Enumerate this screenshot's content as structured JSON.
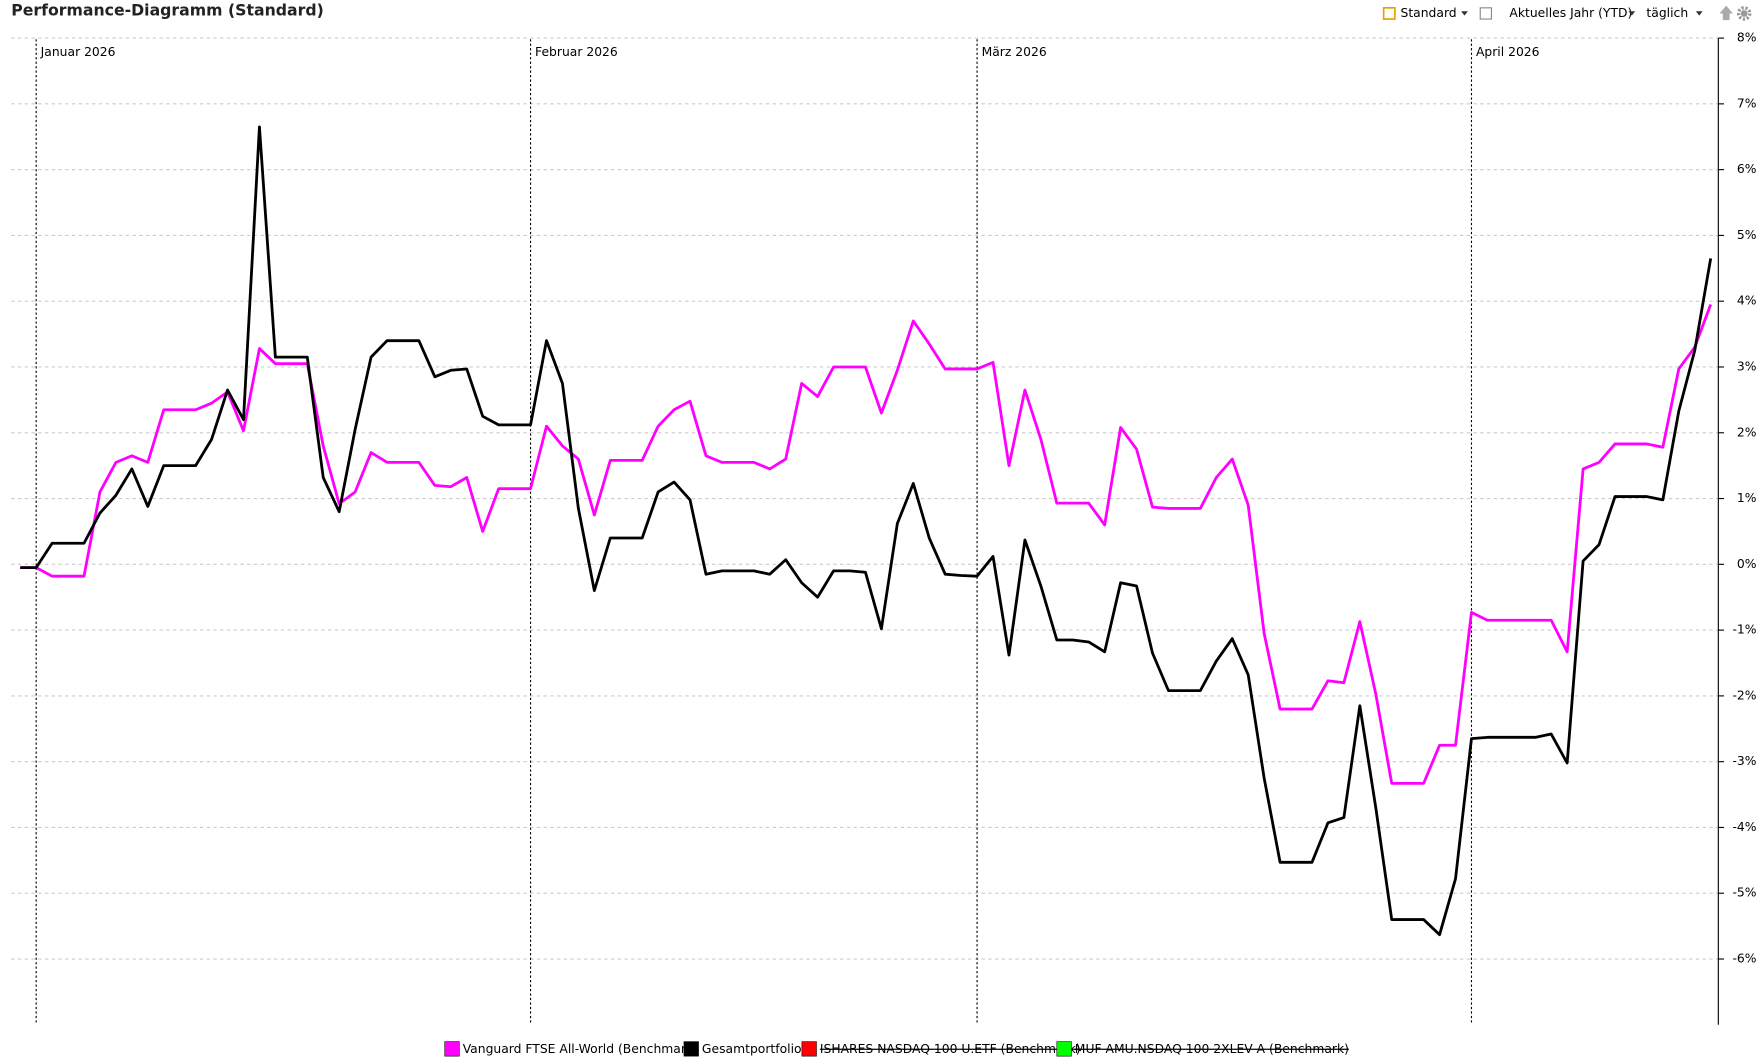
{
  "toolbar": {
    "layout": "Standard",
    "period": "Aktuelles Jahr (YTD)",
    "interval": "täglich"
  },
  "chart_data": {
    "type": "line",
    "title": "Performance-Diagramm (Standard)",
    "categories": [
      null,
      "Januar 2026",
      null,
      null,
      null,
      null,
      null,
      null,
      null,
      null,
      null,
      null,
      null,
      null,
      null,
      null,
      null,
      null,
      null,
      null,
      null,
      null,
      null,
      null,
      null,
      null,
      null,
      null,
      null,
      null,
      null,
      null,
      "Februar 2026",
      null,
      null,
      null,
      null,
      null,
      null,
      null,
      null,
      null,
      null,
      null,
      null,
      null,
      null,
      null,
      null,
      null,
      null,
      null,
      null,
      null,
      null,
      null,
      null,
      null,
      null,
      null,
      "März 2026",
      null,
      null,
      null,
      null,
      null,
      null,
      null,
      null,
      null,
      null,
      null,
      null,
      null,
      null,
      null,
      null,
      null,
      null,
      null,
      null,
      null,
      null,
      null,
      null,
      null,
      null,
      null,
      null,
      null,
      null,
      "April 2026",
      null,
      null,
      null,
      null,
      null,
      null,
      null,
      null,
      null,
      null,
      null,
      null,
      null,
      null,
      null
    ],
    "series": [
      {
        "name": "Vanguard FTSE All-World  (Benchmark)",
        "color": "#ff00ff",
        "visible": true,
        "values": [
          -0.05,
          -0.05,
          -0.18,
          -0.18,
          -0.18,
          1.1,
          1.55,
          1.65,
          1.55,
          2.35,
          2.35,
          2.35,
          2.45,
          2.62,
          2.03,
          3.28,
          3.05,
          3.05,
          3.05,
          1.8,
          0.92,
          1.1,
          1.7,
          1.55,
          1.55,
          1.55,
          1.2,
          1.18,
          1.32,
          0.5,
          1.15,
          1.15,
          1.15,
          2.1,
          1.8,
          1.6,
          0.75,
          1.58,
          1.58,
          1.58,
          2.1,
          2.35,
          2.48,
          1.65,
          1.55,
          1.55,
          1.55,
          1.45,
          1.6,
          2.75,
          2.55,
          3.0,
          3.0,
          3.0,
          2.3,
          2.95,
          3.7,
          3.35,
          2.97,
          2.97,
          2.97,
          3.07,
          1.5,
          2.65,
          1.9,
          0.93,
          0.93,
          0.93,
          0.6,
          2.08,
          1.75,
          0.87,
          0.85,
          0.85,
          0.85,
          1.32,
          1.6,
          0.9,
          -1.05,
          -2.2,
          -2.2,
          -2.2,
          -1.77,
          -1.8,
          -0.87,
          -1.97,
          -3.33,
          -3.33,
          -3.33,
          -2.75,
          -2.75,
          -0.73,
          -0.85,
          -0.85,
          -0.85,
          -0.85,
          -0.85,
          -1.33,
          1.45,
          1.55,
          1.83,
          1.83,
          1.83,
          1.78,
          2.97,
          3.3,
          3.95
        ]
      },
      {
        "name": "Gesamtportfolio",
        "color": "#000000",
        "visible": true,
        "values": [
          -0.05,
          -0.05,
          0.32,
          0.32,
          0.32,
          0.78,
          1.05,
          1.45,
          0.88,
          1.5,
          1.5,
          1.5,
          1.9,
          2.65,
          2.2,
          6.65,
          3.15,
          3.15,
          3.15,
          1.32,
          0.8,
          2.05,
          3.15,
          3.4,
          3.4,
          3.4,
          2.85,
          2.95,
          2.97,
          2.25,
          2.12,
          2.12,
          2.12,
          3.4,
          2.75,
          0.85,
          -0.4,
          0.4,
          0.4,
          0.4,
          1.1,
          1.25,
          0.98,
          -0.15,
          -0.1,
          -0.1,
          -0.1,
          -0.15,
          0.07,
          -0.28,
          -0.5,
          -0.1,
          -0.1,
          -0.12,
          -0.98,
          0.62,
          1.23,
          0.4,
          -0.15,
          -0.17,
          -0.18,
          0.12,
          -1.38,
          0.37,
          -0.33,
          -1.15,
          -1.15,
          -1.18,
          -1.33,
          -0.28,
          -0.33,
          -1.35,
          -1.92,
          -1.92,
          -1.92,
          -1.47,
          -1.13,
          -1.68,
          -3.25,
          -4.53,
          -4.53,
          -4.53,
          -3.93,
          -3.85,
          -2.15,
          -3.7,
          -5.4,
          -5.4,
          -5.4,
          -5.63,
          -4.78,
          -2.65,
          -2.63,
          -2.63,
          -2.63,
          -2.63,
          -2.58,
          -3.02,
          0.05,
          0.3,
          1.03,
          1.03,
          1.03,
          0.98,
          2.33,
          3.25,
          4.65
        ]
      },
      {
        "name": "ISHARES NASDAQ  100 U.ETF (Benchmark)",
        "color": "#ff0000",
        "visible": false
      },
      {
        "name": "MUF  AMU.NSDAQ  100 2XLEV A (Benchmark)",
        "color": "#00ff00",
        "visible": false
      }
    ],
    "ylim": [
      -7,
      8
    ],
    "yticks": [
      {
        "value": 8,
        "label": "8%"
      },
      {
        "value": 7,
        "label": "7%"
      },
      {
        "value": 6,
        "label": "6%"
      },
      {
        "value": 5,
        "label": "5%"
      },
      {
        "value": 4,
        "label": "4%"
      },
      {
        "value": 3,
        "label": "3%"
      },
      {
        "value": 2,
        "label": "2%"
      },
      {
        "value": 1,
        "label": "1%"
      },
      {
        "value": 0,
        "label": "0%"
      },
      {
        "value": -1,
        "label": "-1%"
      },
      {
        "value": -2,
        "label": "-2%"
      },
      {
        "value": -3,
        "label": "-3%"
      },
      {
        "value": -4,
        "label": "-4%"
      },
      {
        "value": -5,
        "label": "-5%"
      },
      {
        "value": -6,
        "label": "-6%"
      }
    ],
    "grid": true,
    "legend": "bottom"
  }
}
